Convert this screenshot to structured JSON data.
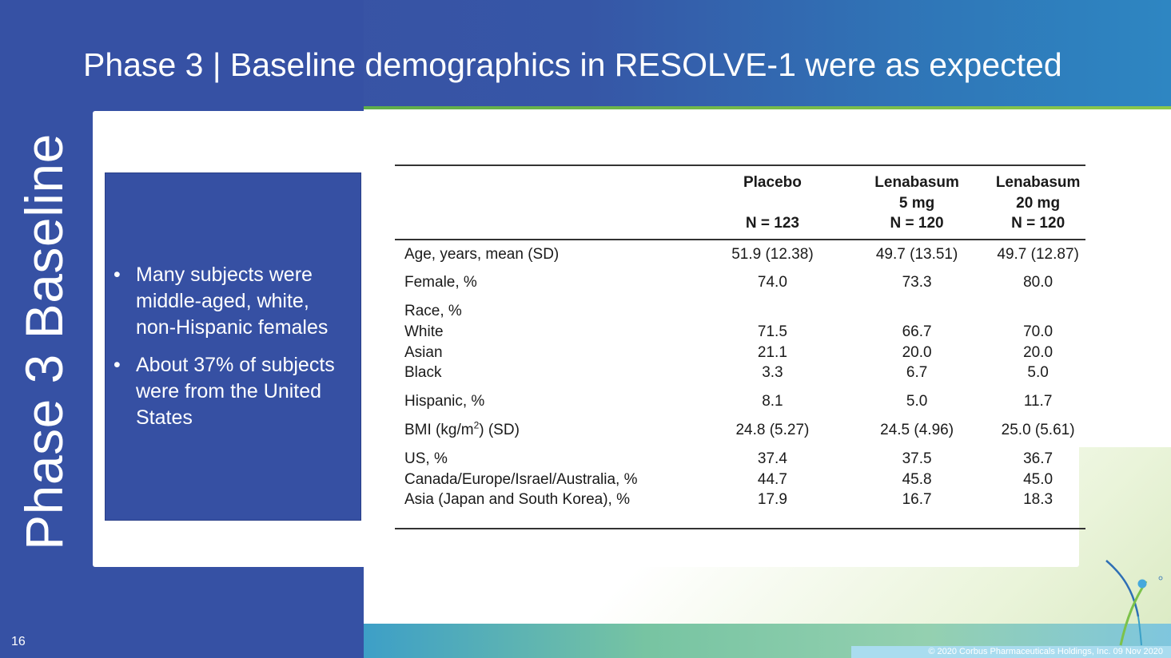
{
  "slide": {
    "title": "Phase 3  |  Baseline demographics in RESOLVE-1 were as expected",
    "side_title": "Phase 3 Baseline",
    "page_number": "16",
    "copyright": "© 2020 Corbus Pharmaceuticals Holdings, Inc. 09 Nov 2020"
  },
  "bullets": [
    "Many subjects were middle-aged, white, non-Hispanic females",
    "About 37% of subjects were from the United States"
  ],
  "bullet_glyph": "•",
  "table": {
    "headers": [
      {
        "line1": "Placebo",
        "line2": "",
        "line3": "N = 123"
      },
      {
        "line1": "Lenabasum",
        "line2": "5 mg",
        "line3": "N = 120"
      },
      {
        "line1": "Lenabasum",
        "line2": "20 mg",
        "line3": "N = 120"
      }
    ],
    "rows": {
      "age": {
        "label": "Age, years, mean (SD)",
        "values": [
          "51.9 (12.38)",
          "49.7 (13.51)",
          "49.7 (12.87)"
        ]
      },
      "female": {
        "label": "Female, %",
        "values": [
          "74.0",
          "73.3",
          "80.0"
        ]
      },
      "race_heading": {
        "label": "Race, %"
      },
      "white": {
        "label": "White",
        "values": [
          "71.5",
          "66.7",
          "70.0"
        ]
      },
      "asian": {
        "label": "Asian",
        "values": [
          "21.1",
          "20.0",
          "20.0"
        ]
      },
      "black": {
        "label": "Black",
        "values": [
          "3.3",
          "6.7",
          "5.0"
        ]
      },
      "hispanic": {
        "label": "Hispanic, %",
        "values": [
          "8.1",
          "5.0",
          "11.7"
        ]
      },
      "bmi": {
        "label_pre": "BMI (kg/m",
        "label_sup": "2",
        "label_post": ") (SD)",
        "values": [
          "24.8 (5.27)",
          "24.5 (4.96)",
          "25.0 (5.61)"
        ]
      },
      "us": {
        "label": "US, %",
        "values": [
          "37.4",
          "37.5",
          "36.7"
        ]
      },
      "canada": {
        "label": "Canada/Europe/Israel/Australia, %",
        "values": [
          "44.7",
          "45.8",
          "45.0"
        ]
      },
      "asia": {
        "label": "Asia (Japan and South Korea), %",
        "values": [
          "17.9",
          "16.7",
          "18.3"
        ]
      }
    }
  },
  "colors": {
    "brand_blue": "#3651a4",
    "accent_green": "#8cc84b",
    "teal": "#3d9fc7"
  },
  "icons": {
    "logo": "corbus-logo-icon"
  }
}
